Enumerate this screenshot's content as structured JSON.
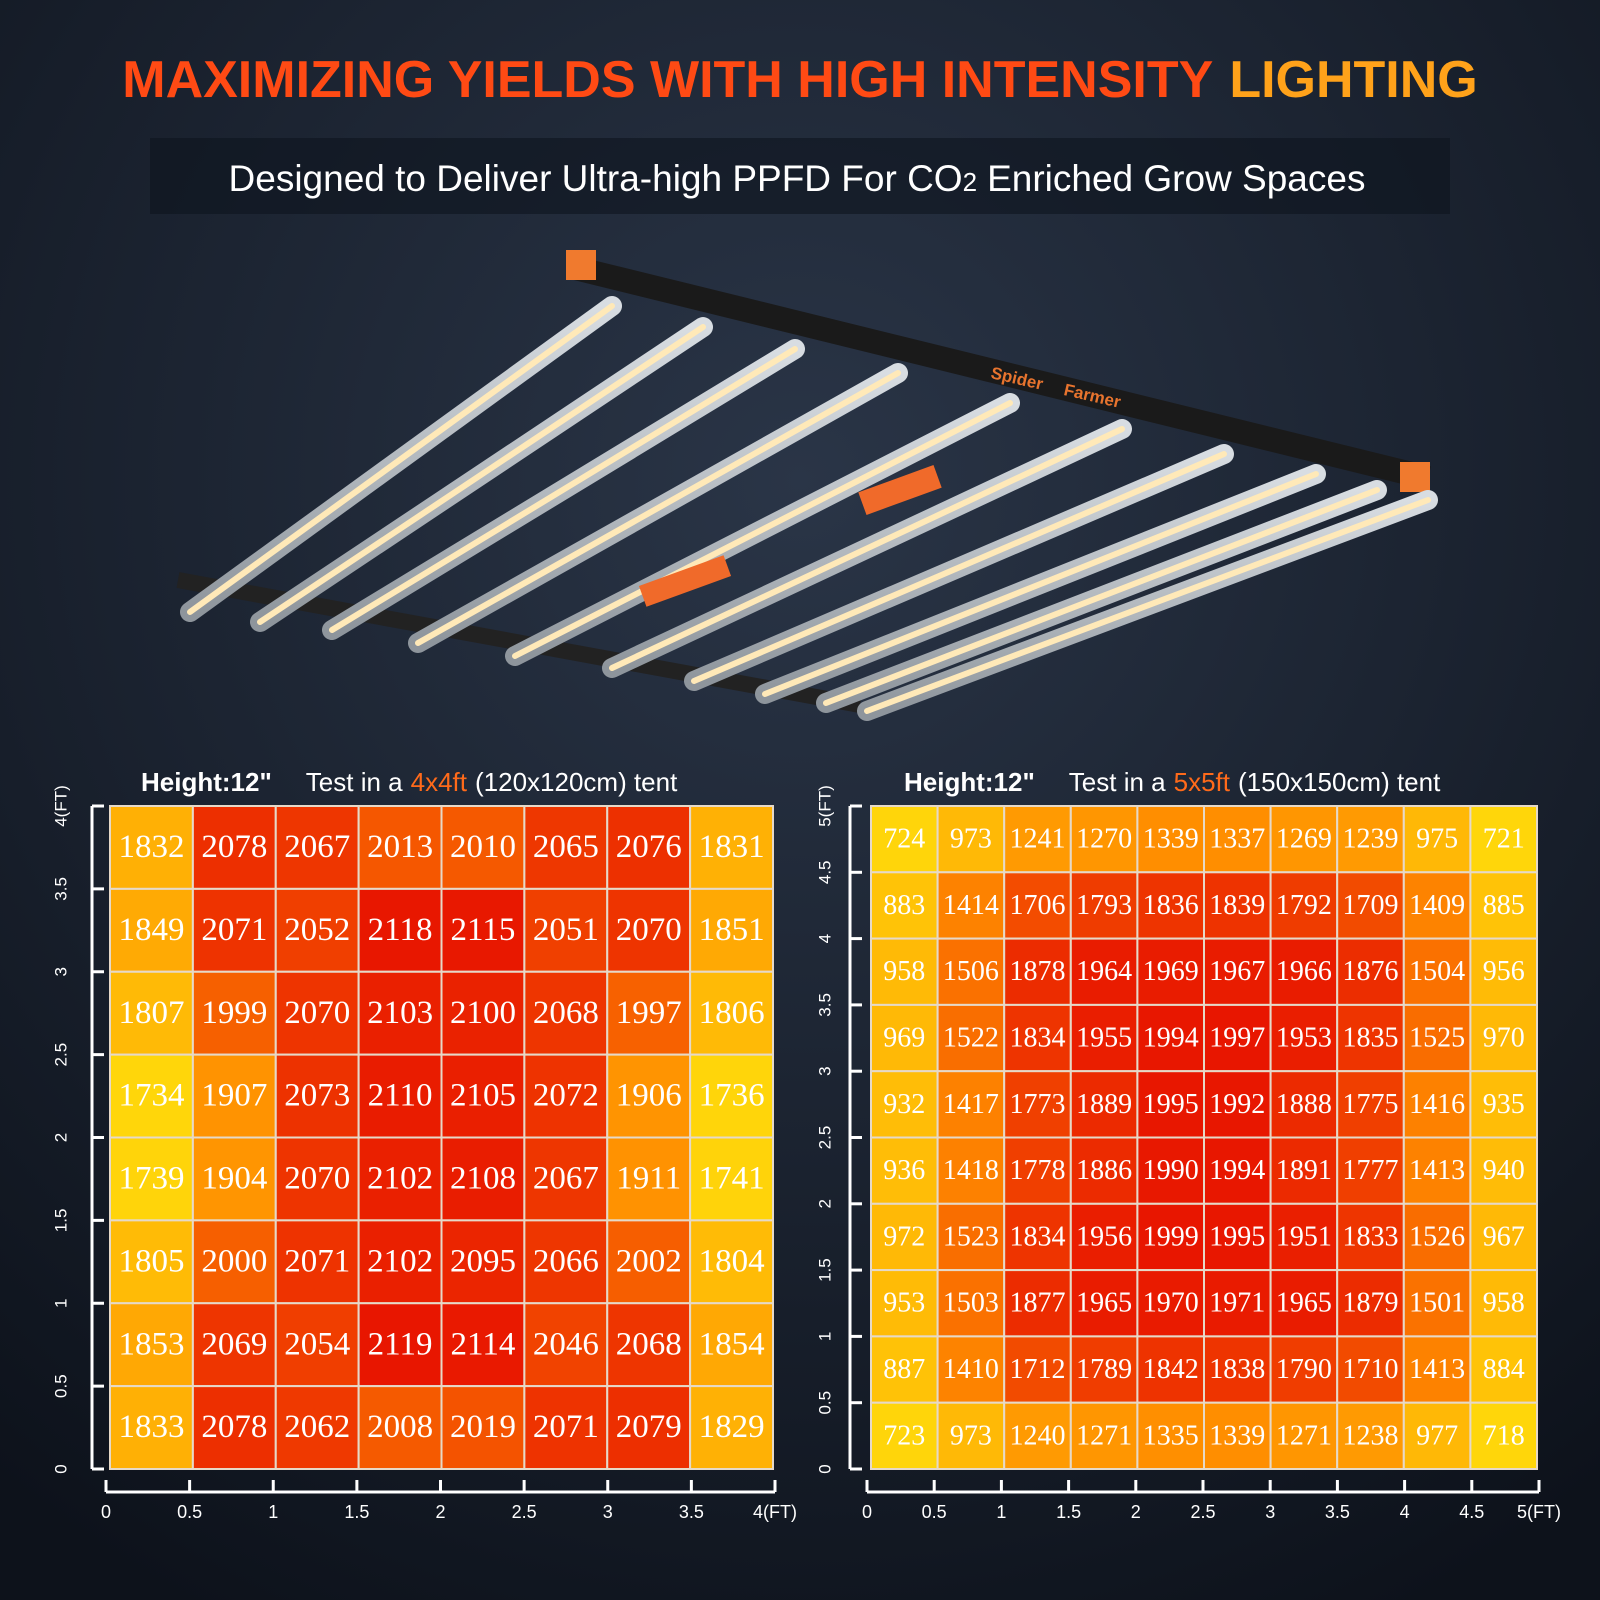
{
  "header": {
    "title_main": "MAXIMIZING YIELDS WITH HIGH INTENSITY",
    "title_accent": "LIGHTING",
    "subtitle_start": "Designed to Deliver Ultra-high PPFD For CO",
    "subtitle_sub": "2",
    "subtitle_end": "Enriched Grow Spaces"
  },
  "product": {
    "brand_left": "Spider",
    "brand_right": "Farmer"
  },
  "panels": [
    {
      "height_label": "Height:12\"",
      "test_prefix": "Test in a",
      "size": "4x4ft",
      "test_suffix": "(120x120cm) tent",
      "y_ticks": [
        "0",
        "0.5",
        "1",
        "1.5",
        "2",
        "2.5",
        "3",
        "3.5",
        "4(FT)"
      ],
      "x_ticks": [
        "0",
        "0.5",
        "1",
        "1.5",
        "2",
        "2.5",
        "3",
        "3.5",
        "4(FT)"
      ],
      "rows": [
        [
          1832,
          2078,
          2067,
          2013,
          2010,
          2065,
          2076,
          1831
        ],
        [
          1849,
          2071,
          2052,
          2118,
          2115,
          2051,
          2070,
          1851
        ],
        [
          1807,
          1999,
          2070,
          2103,
          2100,
          2068,
          1997,
          1806
        ],
        [
          1734,
          1907,
          2073,
          2110,
          2105,
          2072,
          1906,
          1736
        ],
        [
          1739,
          1904,
          2070,
          2102,
          2108,
          2067,
          1911,
          1741
        ],
        [
          1805,
          2000,
          2071,
          2102,
          2095,
          2066,
          2002,
          1804
        ],
        [
          1853,
          2069,
          2054,
          2119,
          2114,
          2046,
          2068,
          1854
        ],
        [
          1833,
          2078,
          2062,
          2008,
          2019,
          2071,
          2079,
          1829
        ]
      ]
    },
    {
      "height_label": "Height:12\"",
      "test_prefix": "Test in a",
      "size": "5x5ft",
      "test_suffix": "(150x150cm) tent",
      "y_ticks": [
        "0",
        "0.5",
        "1",
        "1.5",
        "2",
        "2.5",
        "3",
        "3.5",
        "4",
        "4.5",
        "5(FT)"
      ],
      "x_ticks": [
        "0",
        "0.5",
        "1",
        "1.5",
        "2",
        "2.5",
        "3",
        "3.5",
        "4",
        "4.5",
        "5(FT)"
      ],
      "rows": [
        [
          724,
          973,
          1241,
          1270,
          1339,
          1337,
          1269,
          1239,
          975,
          721
        ],
        [
          883,
          1414,
          1706,
          1793,
          1836,
          1839,
          1792,
          1709,
          1409,
          885
        ],
        [
          958,
          1506,
          1878,
          1964,
          1969,
          1967,
          1966,
          1876,
          1504,
          956
        ],
        [
          969,
          1522,
          1834,
          1955,
          1994,
          1997,
          1953,
          1835,
          1525,
          970
        ],
        [
          932,
          1417,
          1773,
          1889,
          1995,
          1992,
          1888,
          1775,
          1416,
          935
        ],
        [
          936,
          1418,
          1778,
          1886,
          1990,
          1994,
          1891,
          1777,
          1413,
          940
        ],
        [
          972,
          1523,
          1834,
          1956,
          1999,
          1995,
          1951,
          1833,
          1526,
          967
        ],
        [
          953,
          1503,
          1877,
          1965,
          1970,
          1971,
          1965,
          1879,
          1501,
          958
        ],
        [
          887,
          1410,
          1712,
          1789,
          1842,
          1838,
          1790,
          1710,
          1413,
          884
        ],
        [
          723,
          973,
          1240,
          1271,
          1335,
          1339,
          1271,
          1238,
          977,
          718
        ]
      ]
    }
  ]
}
